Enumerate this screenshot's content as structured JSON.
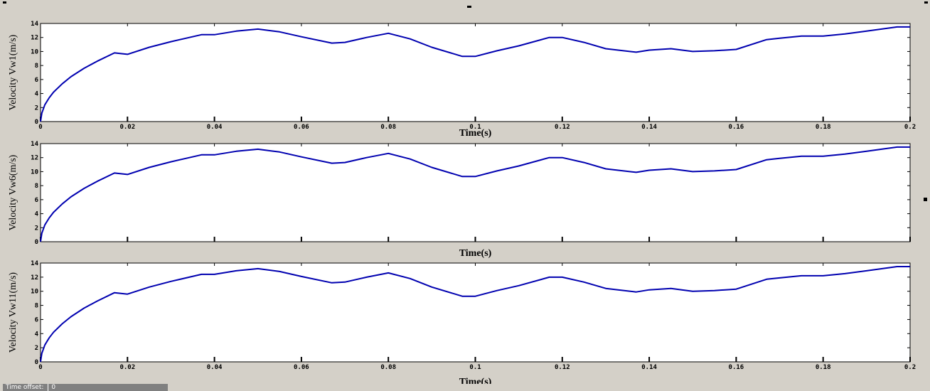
{
  "status": {
    "time_offset_label": "Time offset:",
    "time_offset_value": "0"
  },
  "chart_data": [
    {
      "type": "line",
      "title": "",
      "xlabel": "Time(s)",
      "ylabel": "Velocity Vw1(m/s)",
      "xlim": [
        0,
        0.2
      ],
      "ylim": [
        0,
        14
      ],
      "x_ticks": [
        0,
        0.02,
        0.04,
        0.06,
        0.08,
        0.1,
        0.12,
        0.14,
        0.16,
        0.18,
        0.2
      ],
      "x_tick_labels": [
        "0",
        "0.02",
        "0.04",
        "0.06",
        "0.08",
        "0.1",
        "0.12",
        "0.14",
        "0.16",
        "0.18",
        "0.2"
      ],
      "y_ticks": [
        0,
        2,
        4,
        6,
        8,
        10,
        12,
        14
      ],
      "y_tick_labels": [
        "0",
        "2",
        "4",
        "6",
        "8",
        "10",
        "12",
        "14"
      ],
      "grid": false,
      "series": [
        {
          "color": "#0000b0",
          "x": [
            0,
            0.0003,
            0.001,
            0.002,
            0.003,
            0.005,
            0.007,
            0.01,
            0.013,
            0.017,
            0.02,
            0.025,
            0.03,
            0.037,
            0.04,
            0.045,
            0.05,
            0.055,
            0.06,
            0.067,
            0.07,
            0.075,
            0.08,
            0.085,
            0.09,
            0.097,
            0.1,
            0.105,
            0.11,
            0.117,
            0.12,
            0.125,
            0.13,
            0.137,
            0.14,
            0.145,
            0.15,
            0.155,
            0.16,
            0.167,
            0.17,
            0.175,
            0.18,
            0.185,
            0.19,
            0.197,
            0.2
          ],
          "y": [
            0,
            1.2,
            2.4,
            3.4,
            4.2,
            5.4,
            6.4,
            7.6,
            8.6,
            9.8,
            9.6,
            10.6,
            11.4,
            12.4,
            12.4,
            12.9,
            13.2,
            12.8,
            12.1,
            11.2,
            11.3,
            12.0,
            12.6,
            11.8,
            10.6,
            9.3,
            9.3,
            10.1,
            10.8,
            12.0,
            12.0,
            11.3,
            10.4,
            9.9,
            10.2,
            10.4,
            10.0,
            10.1,
            10.3,
            11.7,
            11.9,
            12.2,
            12.2,
            12.5,
            12.9,
            13.5,
            13.5
          ]
        }
      ]
    },
    {
      "type": "line",
      "title": "",
      "xlabel": "Time(s)",
      "ylabel": "Velocity Vw6(m/s)",
      "xlim": [
        0,
        0.2
      ],
      "ylim": [
        0,
        14
      ],
      "x_ticks": [
        0,
        0.02,
        0.04,
        0.06,
        0.08,
        0.1,
        0.12,
        0.14,
        0.16,
        0.18,
        0.2
      ],
      "x_tick_labels": [
        "",
        "",
        "",
        "",
        "",
        "",
        "",
        "",
        "",
        "",
        ""
      ],
      "y_ticks": [
        0,
        2,
        4,
        6,
        8,
        10,
        12,
        14
      ],
      "y_tick_labels": [
        "0",
        "2",
        "4",
        "6",
        "8",
        "10",
        "12",
        "14"
      ],
      "grid": false,
      "series": [
        {
          "color": "#0000b0",
          "x": [
            0,
            0.0003,
            0.001,
            0.002,
            0.003,
            0.005,
            0.007,
            0.01,
            0.013,
            0.017,
            0.02,
            0.025,
            0.03,
            0.037,
            0.04,
            0.045,
            0.05,
            0.055,
            0.06,
            0.067,
            0.07,
            0.075,
            0.08,
            0.085,
            0.09,
            0.097,
            0.1,
            0.105,
            0.11,
            0.117,
            0.12,
            0.125,
            0.13,
            0.137,
            0.14,
            0.145,
            0.15,
            0.155,
            0.16,
            0.167,
            0.17,
            0.175,
            0.18,
            0.185,
            0.19,
            0.197,
            0.2
          ],
          "y": [
            0,
            1.2,
            2.4,
            3.4,
            4.2,
            5.4,
            6.4,
            7.6,
            8.6,
            9.8,
            9.6,
            10.6,
            11.4,
            12.4,
            12.4,
            12.9,
            13.2,
            12.8,
            12.1,
            11.2,
            11.3,
            12.0,
            12.6,
            11.8,
            10.6,
            9.3,
            9.3,
            10.1,
            10.8,
            12.0,
            12.0,
            11.3,
            10.4,
            9.9,
            10.2,
            10.4,
            10.0,
            10.1,
            10.3,
            11.7,
            11.9,
            12.2,
            12.2,
            12.5,
            12.9,
            13.5,
            13.5
          ]
        }
      ]
    },
    {
      "type": "line",
      "title": "",
      "xlabel": "Time(s)",
      "ylabel": "Velocity Vw11(m/s)",
      "xlim": [
        0,
        0.2
      ],
      "ylim": [
        0,
        14
      ],
      "x_ticks": [
        0,
        0.02,
        0.04,
        0.06,
        0.08,
        0.1,
        0.12,
        0.14,
        0.16,
        0.18,
        0.2
      ],
      "x_tick_labels": [
        "0",
        "0.02",
        "0.04",
        "0.06",
        "0.08",
        "0.1",
        "0.12",
        "0.14",
        "0.16",
        "0.18",
        "0.2"
      ],
      "y_ticks": [
        0,
        2,
        4,
        6,
        8,
        10,
        12,
        14
      ],
      "y_tick_labels": [
        "0",
        "2",
        "4",
        "6",
        "8",
        "10",
        "12",
        "14"
      ],
      "grid": false,
      "series": [
        {
          "color": "#0000b0",
          "x": [
            0,
            0.0003,
            0.001,
            0.002,
            0.003,
            0.005,
            0.007,
            0.01,
            0.013,
            0.017,
            0.02,
            0.025,
            0.03,
            0.037,
            0.04,
            0.045,
            0.05,
            0.055,
            0.06,
            0.067,
            0.07,
            0.075,
            0.08,
            0.085,
            0.09,
            0.097,
            0.1,
            0.105,
            0.11,
            0.117,
            0.12,
            0.125,
            0.13,
            0.137,
            0.14,
            0.145,
            0.15,
            0.155,
            0.16,
            0.167,
            0.17,
            0.175,
            0.18,
            0.185,
            0.19,
            0.197,
            0.2
          ],
          "y": [
            0,
            1.2,
            2.4,
            3.4,
            4.2,
            5.4,
            6.4,
            7.6,
            8.6,
            9.8,
            9.6,
            10.6,
            11.4,
            12.4,
            12.4,
            12.9,
            13.2,
            12.8,
            12.1,
            11.2,
            11.3,
            12.0,
            12.6,
            11.8,
            10.6,
            9.3,
            9.3,
            10.1,
            10.8,
            12.0,
            12.0,
            11.3,
            10.4,
            9.9,
            10.2,
            10.4,
            10.0,
            10.1,
            10.3,
            11.7,
            11.9,
            12.2,
            12.2,
            12.5,
            12.9,
            13.5,
            13.5
          ]
        }
      ]
    }
  ]
}
